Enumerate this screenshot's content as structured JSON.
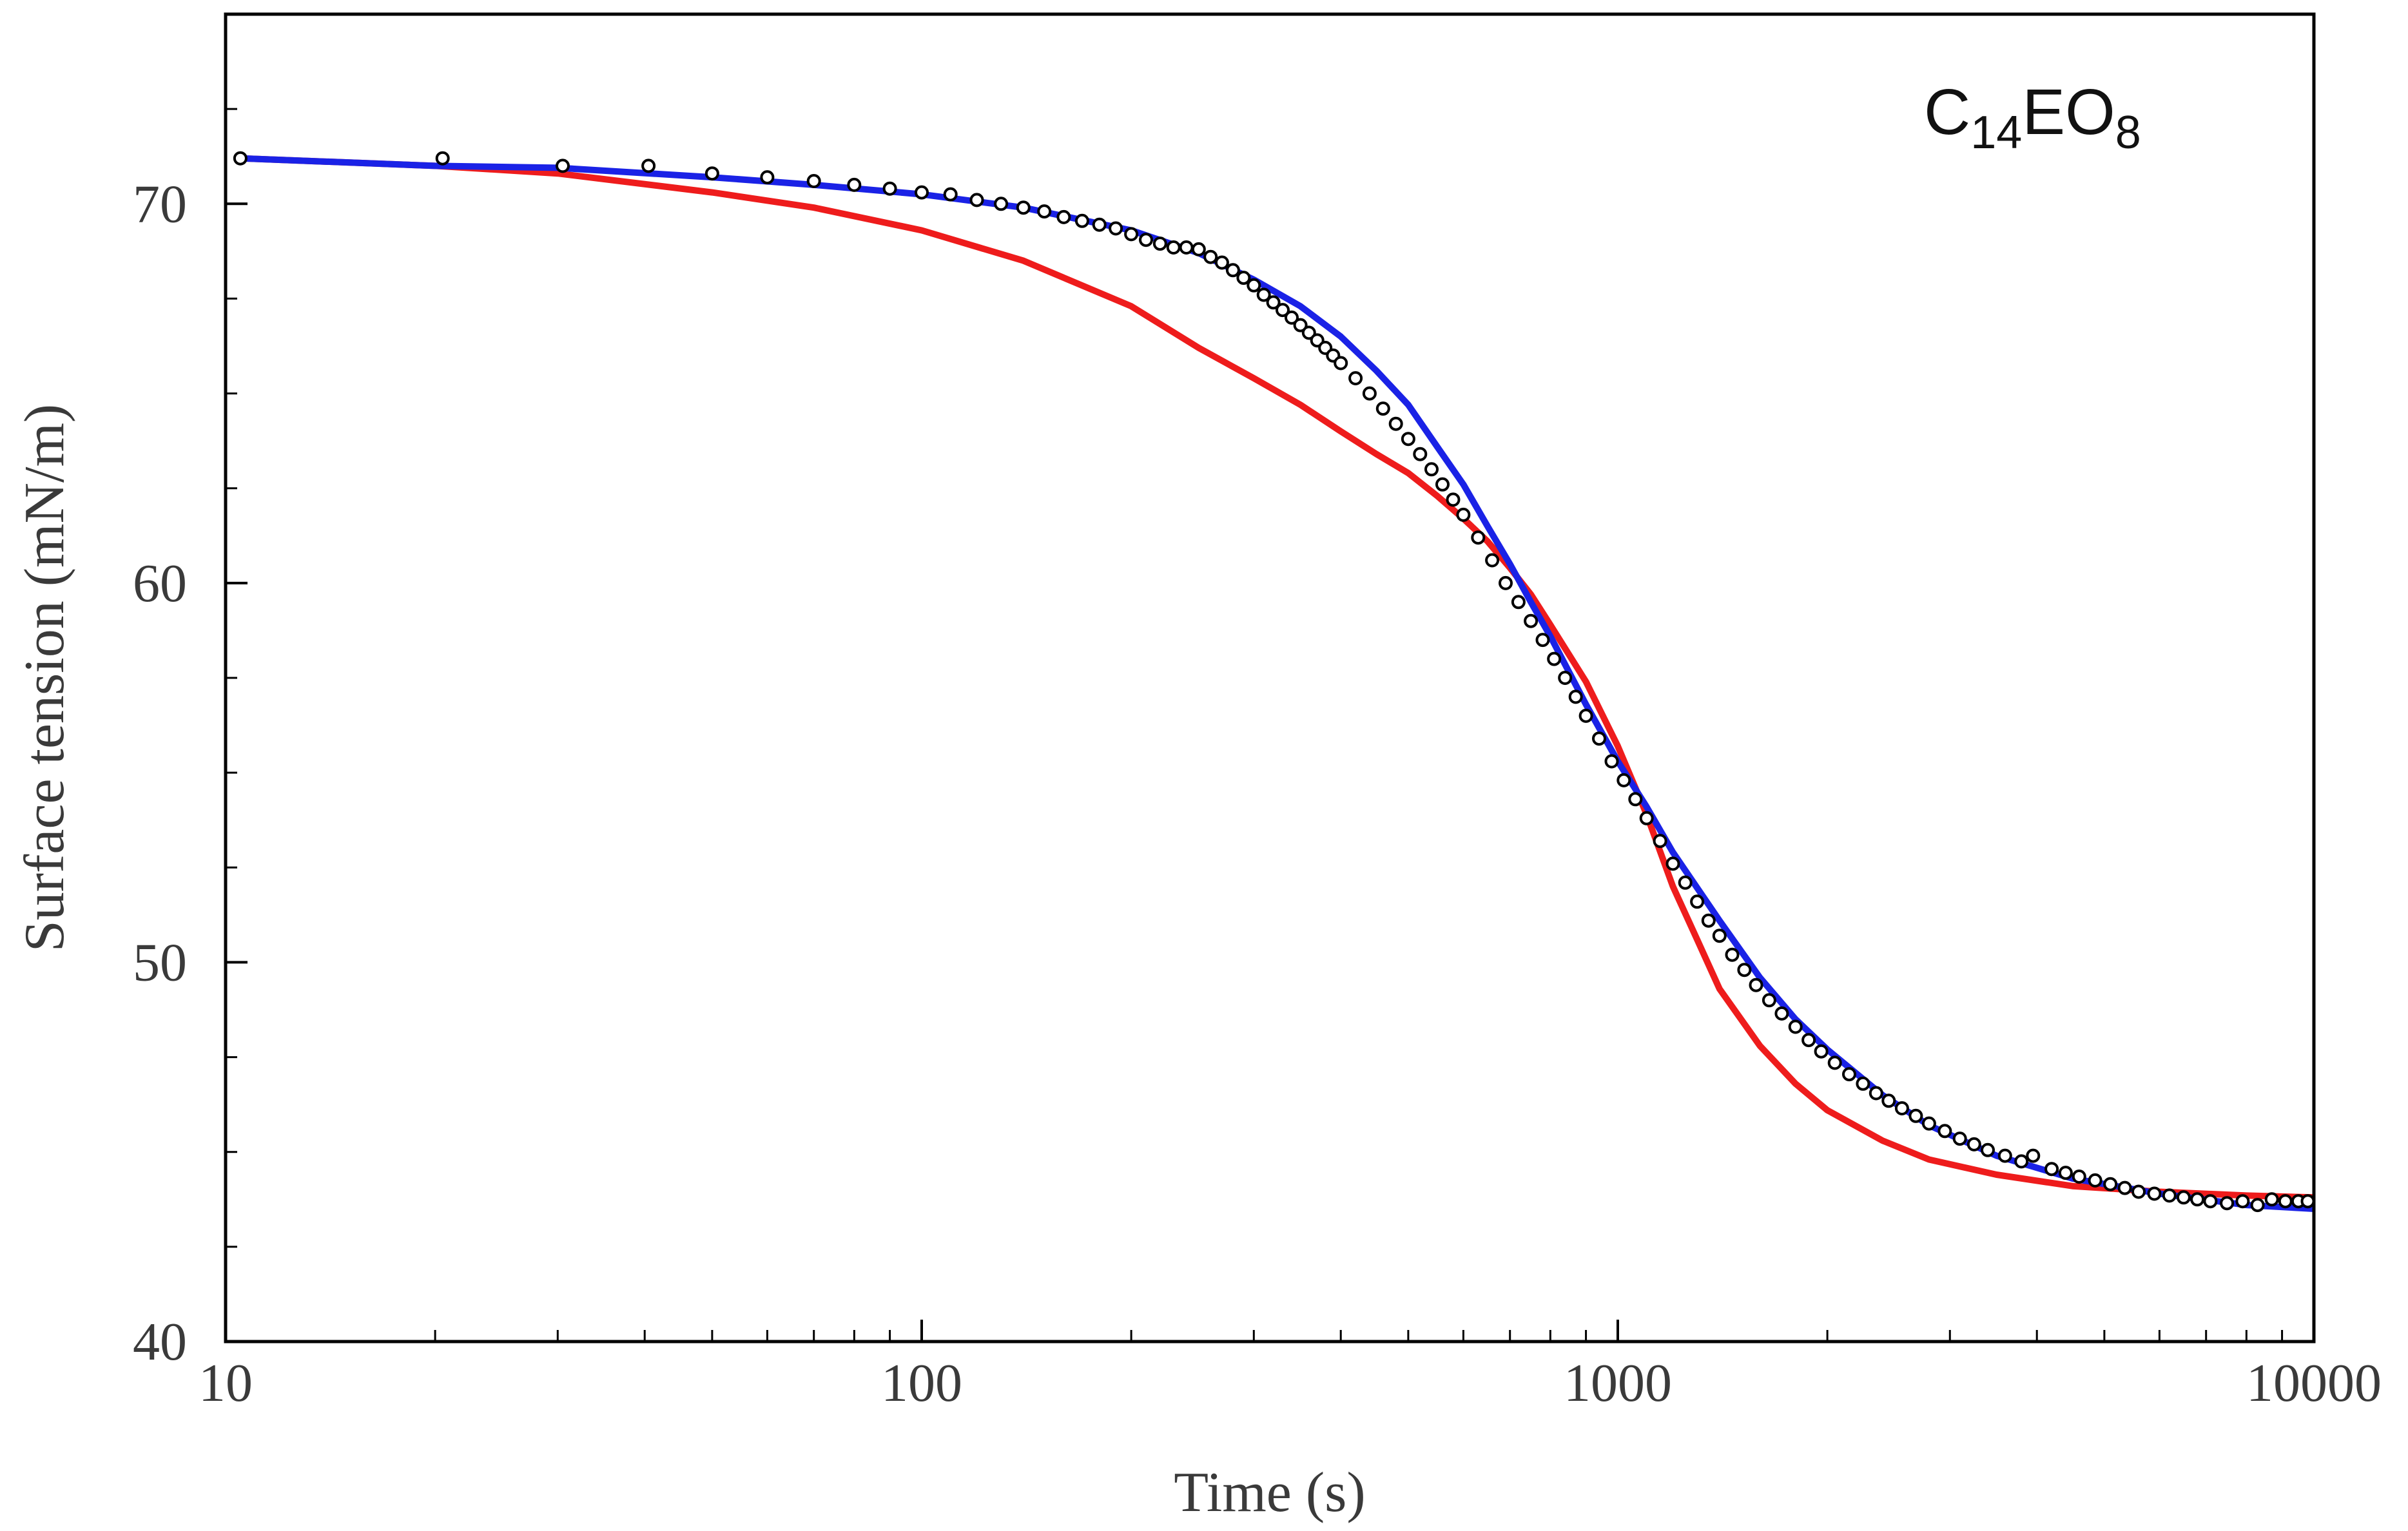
{
  "chart_data": {
    "type": "line",
    "title": "",
    "xlabel": "Time (s)",
    "ylabel": "Surface tension (mN/m)",
    "xscale": "log",
    "xlim": [
      10,
      10000
    ],
    "ylim": [
      40,
      75
    ],
    "x_ticks": [
      10,
      100,
      1000,
      10000
    ],
    "x_tick_labels": [
      "10",
      "100",
      "1000",
      "10000"
    ],
    "y_ticks": [
      40,
      50,
      60,
      70
    ],
    "y_tick_labels": [
      "40",
      "50",
      "60",
      "70"
    ],
    "y_minor_step": 2.5,
    "grid": false,
    "annotation": {
      "base": "C",
      "sub1": "14",
      "mid": "EO",
      "sub2": "8"
    },
    "colors": {
      "experimental": "#000000",
      "red_model": "#ee1c1c",
      "blue_model": "#1a22e6",
      "axis": "#000000"
    },
    "series": [
      {
        "name": "experimental",
        "style": "markers",
        "marker": "open-circle",
        "x": [
          10.5,
          20.5,
          30.5,
          40.5,
          50,
          60,
          70,
          80,
          90,
          100,
          110,
          120,
          130,
          140,
          150,
          160,
          170,
          180,
          190,
          200,
          210,
          220,
          230,
          240,
          250,
          260,
          270,
          280,
          290,
          300,
          310,
          320,
          330,
          340,
          350,
          360,
          370,
          380,
          390,
          400,
          420,
          440,
          460,
          480,
          500,
          520,
          540,
          560,
          580,
          600,
          630,
          660,
          690,
          720,
          750,
          780,
          810,
          840,
          870,
          900,
          940,
          980,
          1020,
          1060,
          1100,
          1150,
          1200,
          1250,
          1300,
          1350,
          1400,
          1460,
          1520,
          1580,
          1650,
          1720,
          1800,
          1880,
          1960,
          2050,
          2150,
          2250,
          2350,
          2450,
          2560,
          2680,
          2800,
          2950,
          3100,
          3250,
          3400,
          3600,
          3800,
          3950,
          4200,
          4400,
          4600,
          4850,
          5100,
          5350,
          5600,
          5900,
          6200,
          6500,
          6800,
          7100,
          7500,
          7900,
          8300,
          8700,
          9100,
          9500,
          9800
        ],
        "y": [
          71.2,
          71.2,
          71.0,
          71.0,
          70.8,
          70.7,
          70.6,
          70.5,
          70.4,
          70.3,
          70.25,
          70.1,
          70.0,
          69.9,
          69.8,
          69.65,
          69.55,
          69.45,
          69.35,
          69.2,
          69.05,
          68.95,
          68.85,
          68.85,
          68.8,
          68.6,
          68.45,
          68.25,
          68.05,
          67.85,
          67.6,
          67.4,
          67.2,
          67.0,
          66.8,
          66.6,
          66.4,
          66.2,
          66.0,
          65.8,
          65.4,
          65.0,
          64.6,
          64.2,
          63.8,
          63.4,
          63.0,
          62.6,
          62.2,
          61.8,
          61.2,
          60.6,
          60.0,
          59.5,
          59.0,
          58.5,
          58.0,
          57.5,
          57.0,
          56.5,
          55.9,
          55.3,
          54.8,
          54.3,
          53.8,
          53.2,
          52.6,
          52.1,
          51.6,
          51.1,
          50.7,
          50.2,
          49.8,
          49.4,
          49.0,
          48.65,
          48.3,
          47.95,
          47.65,
          47.35,
          47.05,
          46.8,
          46.55,
          46.35,
          46.15,
          45.95,
          45.75,
          45.55,
          45.35,
          45.2,
          45.05,
          44.9,
          44.75,
          44.9,
          44.55,
          44.45,
          44.35,
          44.25,
          44.15,
          44.05,
          43.95,
          43.9,
          43.85,
          43.8,
          43.75,
          43.7,
          43.65,
          43.7,
          43.6,
          43.75,
          43.7,
          43.7,
          43.7
        ]
      },
      {
        "name": "red model",
        "style": "line",
        "x": [
          10.5,
          20,
          30,
          50,
          70,
          100,
          140,
          200,
          250,
          300,
          350,
          400,
          450,
          500,
          550,
          600,
          650,
          700,
          750,
          800,
          900,
          1000,
          1100,
          1200,
          1300,
          1400,
          1600,
          1800,
          2000,
          2400,
          2800,
          3500,
          4500,
          6000,
          8000,
          10000
        ],
        "y": [
          71.2,
          71.0,
          70.8,
          70.3,
          69.9,
          69.3,
          68.5,
          67.3,
          66.2,
          65.4,
          64.7,
          64.0,
          63.4,
          62.9,
          62.3,
          61.7,
          61.1,
          60.4,
          59.7,
          58.9,
          57.4,
          55.7,
          53.9,
          52.0,
          50.6,
          49.3,
          47.8,
          46.8,
          46.1,
          45.3,
          44.8,
          44.4,
          44.1,
          43.95,
          43.85,
          43.8
        ]
      },
      {
        "name": "blue model",
        "style": "line",
        "x": [
          10.5,
          20,
          30,
          50,
          70,
          100,
          140,
          200,
          250,
          300,
          350,
          400,
          450,
          500,
          550,
          600,
          650,
          700,
          750,
          800,
          900,
          1000,
          1100,
          1200,
          1400,
          1600,
          1800,
          2000,
          2400,
          2800,
          3500,
          4500,
          6000,
          8000,
          10000
        ],
        "y": [
          71.2,
          71.0,
          70.95,
          70.7,
          70.5,
          70.25,
          69.9,
          69.3,
          68.7,
          68.0,
          67.3,
          66.5,
          65.6,
          64.7,
          63.6,
          62.6,
          61.5,
          60.5,
          59.5,
          58.6,
          56.8,
          55.3,
          54.1,
          52.9,
          51.1,
          49.6,
          48.5,
          47.7,
          46.5,
          45.7,
          44.9,
          44.3,
          43.9,
          43.6,
          43.5
        ]
      }
    ]
  }
}
